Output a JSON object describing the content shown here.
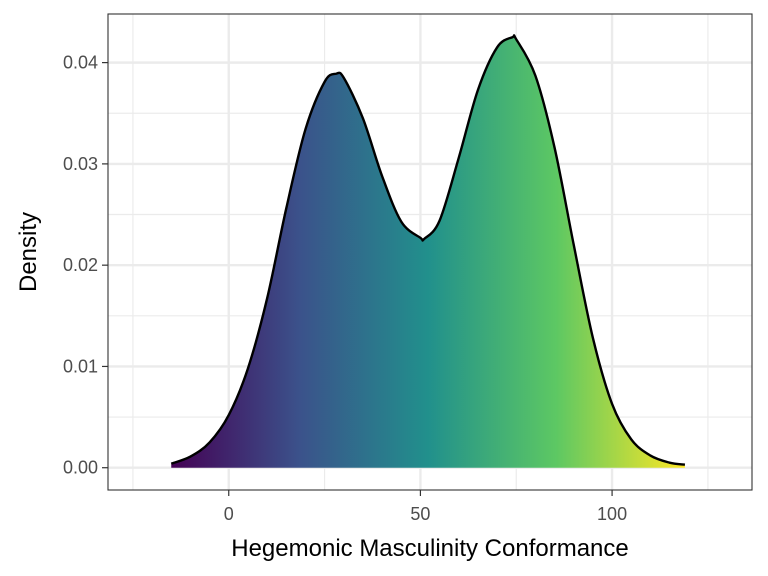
{
  "chart_data": {
    "type": "area",
    "xlabel": "Hegemonic Masculinity Conformance",
    "ylabel": "Density",
    "xlim": [
      -31.5,
      136.5
    ],
    "ylim": [
      -0.0022,
      0.0448
    ],
    "x_ticks": [
      0,
      50,
      100
    ],
    "x_tick_labels": [
      "0",
      "50",
      "100"
    ],
    "y_ticks": [
      0.0,
      0.01,
      0.02,
      0.03,
      0.04
    ],
    "y_tick_labels": [
      "0.00",
      "0.01",
      "0.02",
      "0.03",
      "0.04"
    ],
    "x_minor_ticks": [
      -25,
      25,
      75,
      125
    ],
    "y_minor_ticks": [
      0.005,
      0.015,
      0.025,
      0.035
    ],
    "grid": true,
    "legend": "none",
    "fill": "gradient along x (viridis)",
    "gradient_colors": [
      "#440154",
      "#3b528b",
      "#21908c",
      "#5dc863",
      "#fde725"
    ],
    "line_color": "#000000",
    "series": [
      {
        "x": [
          -15,
          -10,
          -5,
          0,
          5,
          10,
          15,
          20,
          25,
          28,
          30,
          35,
          40,
          45,
          50,
          51,
          55,
          60,
          65,
          70,
          74,
          75,
          80,
          85,
          90,
          95,
          100,
          105,
          110,
          115,
          119
        ],
        "y": [
          0.0004,
          0.0011,
          0.0025,
          0.0052,
          0.0098,
          0.0167,
          0.0256,
          0.0334,
          0.0381,
          0.0389,
          0.0385,
          0.0345,
          0.0288,
          0.0243,
          0.0227,
          0.0226,
          0.0244,
          0.0306,
          0.0373,
          0.0415,
          0.0425,
          0.0423,
          0.0387,
          0.0316,
          0.022,
          0.0128,
          0.0063,
          0.0028,
          0.0012,
          0.0005,
          0.0003
        ]
      }
    ]
  }
}
